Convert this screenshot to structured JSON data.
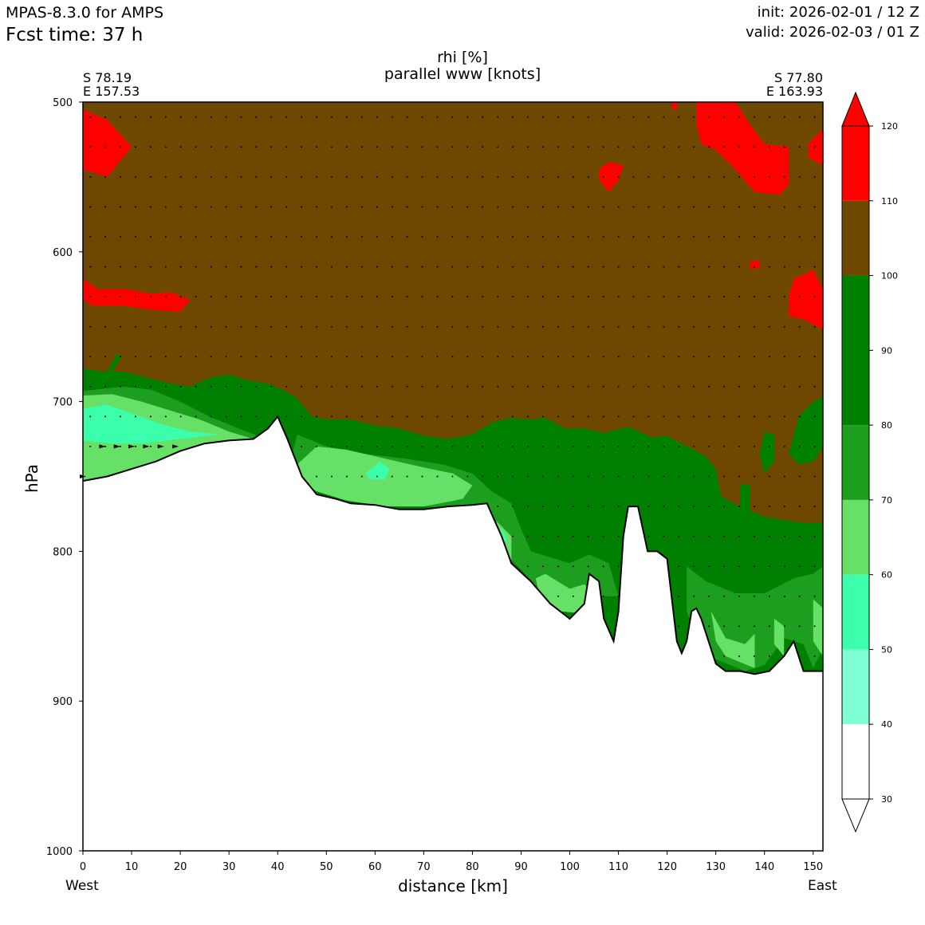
{
  "header": {
    "model": "MPAS-8.3.0 for AMPS",
    "fcst": "Fcst time:   37 h",
    "init": "init: 2026-02-01 / 12 Z",
    "valid": "valid: 2026-02-03 / 01 Z"
  },
  "chart_data": {
    "type": "heatmap",
    "title": "rhi [%]",
    "subtitle": "parallel www [knots]",
    "xlabel": "distance [km]",
    "ylabel": "hPa",
    "xlim": [
      0,
      152
    ],
    "ylim": [
      1000,
      500
    ],
    "x_ticks": [
      "0",
      "10",
      "20",
      "30",
      "40",
      "50",
      "60",
      "70",
      "80",
      "90",
      "100",
      "110",
      "120",
      "130",
      "140",
      "150"
    ],
    "y_ticks": [
      "500",
      "600",
      "700",
      "800",
      "900",
      "1000"
    ],
    "left_end": {
      "lat": "S 78.19",
      "lon": "E 157.53",
      "side": "West"
    },
    "right_end": {
      "lat": "S 77.80",
      "lon": "E 163.93",
      "side": "East"
    },
    "colorbar": {
      "ticks": [
        "30",
        "40",
        "50",
        "60",
        "70",
        "80",
        "90",
        "100",
        "110",
        "120"
      ],
      "levels": [
        {
          "range": [
            30,
            40
          ],
          "color": "#ffffff"
        },
        {
          "range": [
            40,
            50
          ],
          "color": "#7fffd4"
        },
        {
          "range": [
            50,
            60
          ],
          "color": "#3bffaa"
        },
        {
          "range": [
            60,
            70
          ],
          "color": "#66e066"
        },
        {
          "range": [
            70,
            80
          ],
          "color": "#1e9e1e"
        },
        {
          "range": [
            80,
            100
          ],
          "color": "#008000"
        },
        {
          "range": [
            100,
            110
          ],
          "color": "#6e4800"
        },
        {
          "range": [
            110,
            120
          ],
          "color": "#ff0000"
        }
      ]
    },
    "terrain_pressure_profile": {
      "x": [
        0,
        5,
        10,
        15,
        20,
        25,
        30,
        35,
        38,
        40,
        42,
        45,
        48,
        52,
        55,
        60,
        65,
        70,
        75,
        80,
        83,
        86,
        88,
        92,
        96,
        100,
        103,
        104,
        106,
        107,
        109,
        110,
        111,
        112,
        114,
        116,
        118,
        120,
        122,
        123,
        124,
        125,
        126,
        127,
        128,
        130,
        132,
        135,
        138,
        141,
        144,
        146,
        148,
        150,
        152
      ],
      "p": [
        753,
        750,
        745,
        740,
        733,
        728,
        726,
        725,
        718,
        710,
        725,
        750,
        762,
        765,
        768,
        769,
        772,
        772,
        770,
        769,
        768,
        790,
        808,
        820,
        835,
        845,
        835,
        815,
        820,
        845,
        860,
        840,
        790,
        770,
        770,
        800,
        800,
        805,
        860,
        868,
        860,
        840,
        838,
        845,
        855,
        875,
        880,
        880,
        882,
        880,
        870,
        860,
        880,
        880,
        880
      ]
    }
  }
}
